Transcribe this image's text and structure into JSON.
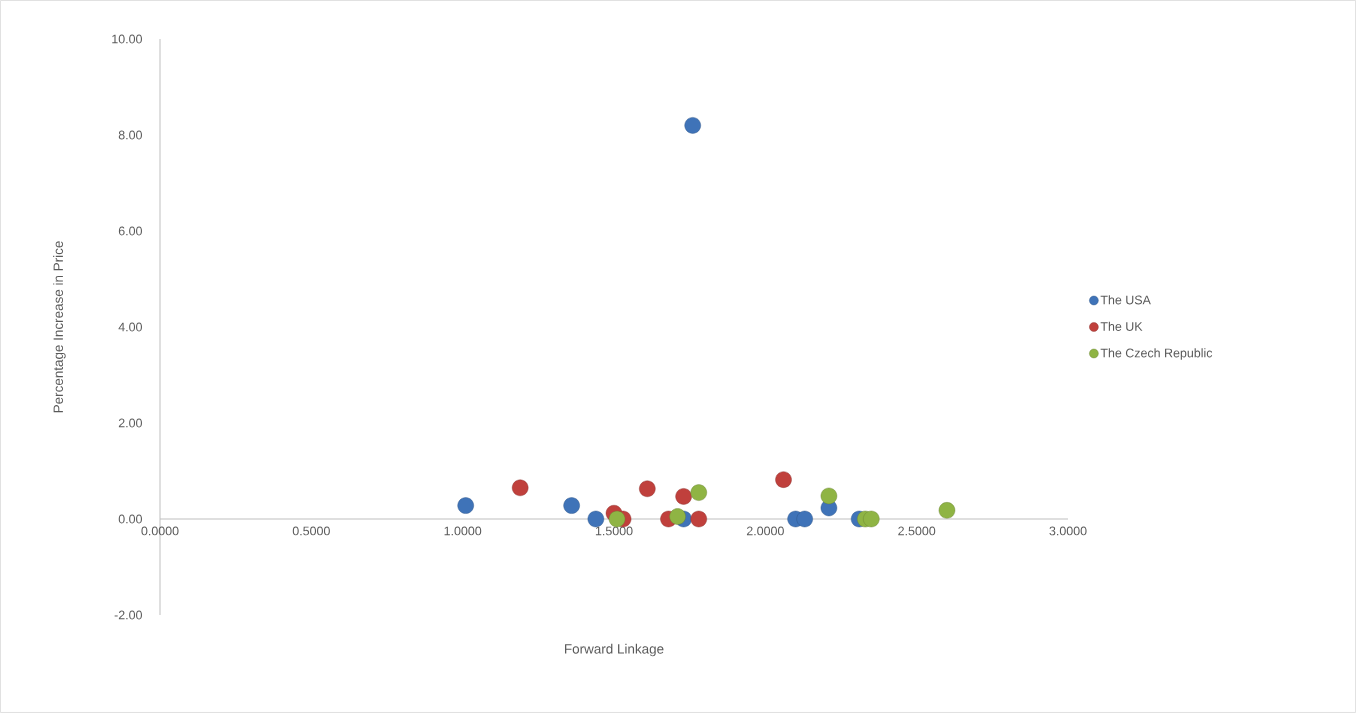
{
  "chart_data": {
    "type": "scatter",
    "xlabel": "Forward Linkage",
    "ylabel": "Percentage Increase in Price",
    "xlim": [
      0,
      3
    ],
    "ylim": [
      -2,
      10
    ],
    "xticks": [
      {
        "value": 0,
        "label": "0.0000"
      },
      {
        "value": 0.5,
        "label": "0.5000"
      },
      {
        "value": 1,
        "label": "1.0000"
      },
      {
        "value": 1.5,
        "label": "1.5000"
      },
      {
        "value": 2,
        "label": "2.0000"
      },
      {
        "value": 2.5,
        "label": "2.5000"
      },
      {
        "value": 3,
        "label": "3.0000"
      }
    ],
    "yticks": [
      {
        "value": -2,
        "label": "-2.00"
      },
      {
        "value": 0,
        "label": "0.00"
      },
      {
        "value": 2,
        "label": "2.00"
      },
      {
        "value": 4,
        "label": "4.00"
      },
      {
        "value": 6,
        "label": "6.00"
      },
      {
        "value": 8,
        "label": "8.00"
      },
      {
        "value": 10,
        "label": "10.00"
      }
    ],
    "grid": false,
    "legend": "right",
    "series": [
      {
        "name": "The USA",
        "color": "#3f73b8",
        "x": [
          1.01,
          1.36,
          1.44,
          1.73,
          1.76,
          2.1,
          2.13,
          2.21,
          2.31
        ],
        "values": [
          0.28,
          0.28,
          0,
          0,
          8.2,
          0,
          0,
          0.23,
          0
        ]
      },
      {
        "name": "The UK",
        "color": "#c0403c",
        "x": [
          1.19,
          1.5,
          1.53,
          1.61,
          1.68,
          1.73,
          1.78,
          2.06
        ],
        "values": [
          0.65,
          0.12,
          0,
          0.63,
          0,
          0.47,
          0,
          0.82
        ]
      },
      {
        "name": "The Czech Republic",
        "color": "#8fb444",
        "x": [
          1.51,
          1.71,
          1.78,
          2.21,
          2.33,
          2.35,
          2.6
        ],
        "values": [
          0,
          0.05,
          0.55,
          0.48,
          0,
          0,
          0.18
        ]
      }
    ]
  }
}
